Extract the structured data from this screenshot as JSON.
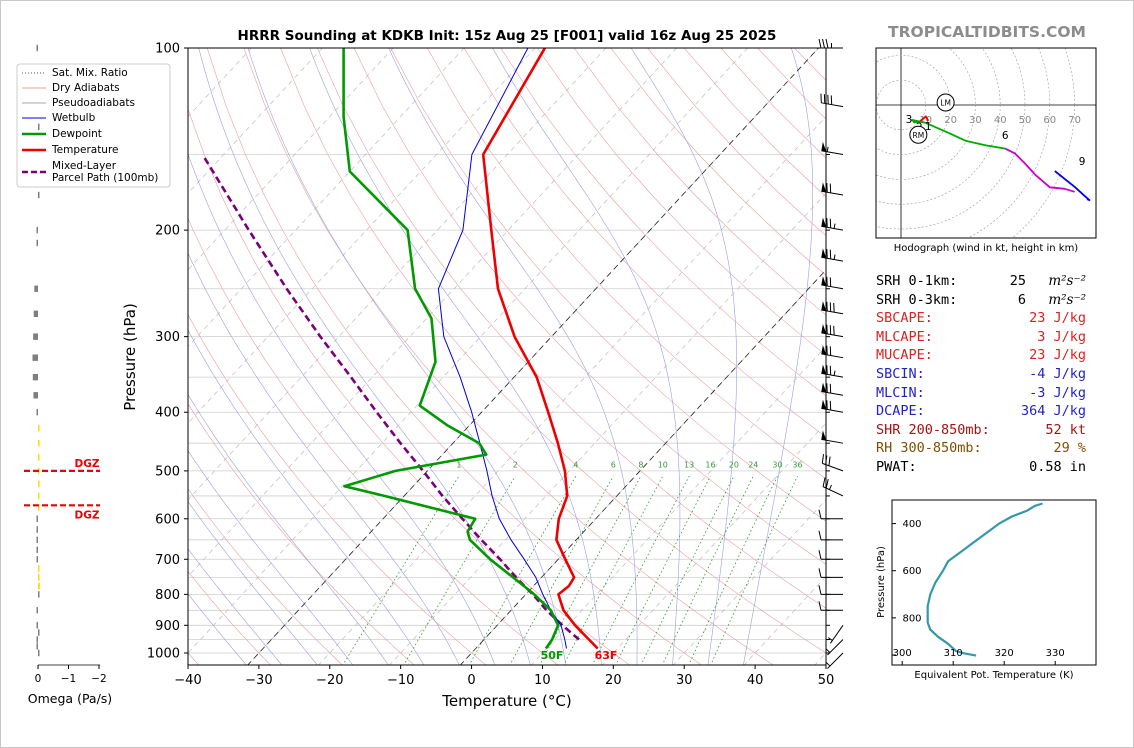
{
  "title": "HRRR Sounding at KDKB Init: 15z Aug 25 [F001] valid 16z Aug 25 2025",
  "brand": "TROPICALTIDBITS.COM",
  "colors": {
    "temperature": "#ee0000",
    "dewpoint": "#009900",
    "parcel": "#7a007a",
    "wetbulb": "#0000dd",
    "dry_adiabat": "#e8a0a0",
    "moist_adiabat": "#9aa0e0",
    "mixing_ratio": "#2a9a2a",
    "isotherm": "#000000",
    "theta_e": "#3399aa",
    "cape_text": "#dd2222",
    "cin_text": "#2222cc",
    "shr_text": "#aa1111",
    "rh_text": "#805000",
    "dgz": "#ee0000"
  },
  "chart_data": [
    {
      "type": "line",
      "name": "skew-t",
      "xlabel": "Temperature (°C)",
      "ylabel": "Pressure (hPa)",
      "xlim": [
        -40,
        50
      ],
      "ylim": [
        1050,
        100
      ],
      "x_ticks": [
        "−40",
        "−30",
        "−20",
        "−10",
        "0",
        "10",
        "20",
        "30",
        "40",
        "50"
      ],
      "y_ticks": [
        "100",
        "200",
        "300",
        "400",
        "500",
        "600",
        "700",
        "800",
        "900",
        "1000"
      ],
      "y_scale": "log",
      "grid": true,
      "legend": [
        "Sat. Mix. Ratio",
        "Dry Adiabats",
        "Pseudoadiabats",
        "Wetbulb",
        "Dewpoint",
        "Temperature",
        "Mixed-Layer\nParcel Path (100mb)"
      ],
      "legend_position": "upper-left",
      "surface_labels": {
        "dewpoint": "50F",
        "temperature": "63F"
      },
      "mixing_ratio_labels": [
        "1",
        "2",
        "4",
        "6",
        "8",
        "10",
        "13",
        "16",
        "20",
        "24",
        "30",
        "36"
      ],
      "temperature": {
        "p": [
          983,
          950,
          900,
          850,
          800,
          775,
          750,
          700,
          650,
          600,
          550,
          500,
          450,
          400,
          350,
          300,
          250,
          200,
          150,
          100
        ],
        "t": [
          17.2,
          14.8,
          11.0,
          7.4,
          4.6,
          5.0,
          4.6,
          1.0,
          -2.8,
          -5.2,
          -7.0,
          -10.6,
          -15.2,
          -20.6,
          -26.8,
          -35.2,
          -43.8,
          -52.4,
          -63.4,
          -68.6
        ]
      },
      "dewpoint": {
        "p": [
          983,
          950,
          900,
          850,
          800,
          750,
          700,
          650,
          630,
          600,
          550,
          530,
          500,
          470,
          450,
          420,
          390,
          370,
          330,
          280,
          250,
          200,
          160,
          130,
          100
        ],
        "t": [
          9.9,
          9.6,
          8.6,
          5.6,
          1.2,
          -4.0,
          -9.6,
          -15.0,
          -16.4,
          -17.0,
          -32.8,
          -39.7,
          -34.5,
          -23.8,
          -26.3,
          -33.2,
          -39.6,
          -40.7,
          -43.1,
          -49.3,
          -55.5,
          -64.2,
          -80.0,
          -88.0,
          -97.0
        ]
      },
      "wetbulb": {
        "p": [
          983,
          950,
          900,
          850,
          800,
          750,
          700,
          650,
          600,
          550,
          500,
          450,
          400,
          350,
          300,
          250,
          200,
          150,
          100
        ],
        "t": [
          12.8,
          11.4,
          9.0,
          5.6,
          2.4,
          -0.8,
          -4.8,
          -9.2,
          -13.6,
          -17.6,
          -21.6,
          -26.2,
          -31.4,
          -37.6,
          -45.2,
          -52.2,
          -56.4,
          -65.0,
          -71.0
        ]
      },
      "parcel": {
        "p": [
          950,
          900,
          850,
          800,
          750,
          700,
          650,
          600,
          550,
          500,
          450,
          400,
          350,
          300,
          250,
          200,
          150
        ],
        "t": [
          13.4,
          9.2,
          5.0,
          1.0,
          -3.6,
          -8.2,
          -13.4,
          -18.8,
          -24.6,
          -30.6,
          -37.4,
          -44.8,
          -53.0,
          -62.6,
          -73.6,
          -86.6,
          -103.0
        ]
      },
      "wind_barbs": [
        {
          "p": 1000,
          "dir": 225,
          "spd": 5
        },
        {
          "p": 950,
          "dir": 225,
          "spd": 5
        },
        {
          "p": 900,
          "dir": 215,
          "spd": 5
        },
        {
          "p": 850,
          "dir": 270,
          "spd": 10
        },
        {
          "p": 800,
          "dir": 270,
          "spd": 10
        },
        {
          "p": 750,
          "dir": 270,
          "spd": 10
        },
        {
          "p": 700,
          "dir": 270,
          "spd": 10
        },
        {
          "p": 650,
          "dir": 270,
          "spd": 10
        },
        {
          "p": 600,
          "dir": 270,
          "spd": 10
        },
        {
          "p": 550,
          "dir": 295,
          "spd": 25
        },
        {
          "p": 500,
          "dir": 290,
          "spd": 30
        },
        {
          "p": 450,
          "dir": 280,
          "spd": 50
        },
        {
          "p": 400,
          "dir": 280,
          "spd": 70
        },
        {
          "p": 375,
          "dir": 280,
          "spd": 70
        },
        {
          "p": 350,
          "dir": 280,
          "spd": 75
        },
        {
          "p": 325,
          "dir": 280,
          "spd": 70
        },
        {
          "p": 300,
          "dir": 280,
          "spd": 80
        },
        {
          "p": 275,
          "dir": 280,
          "spd": 80
        },
        {
          "p": 250,
          "dir": 280,
          "spd": 70
        },
        {
          "p": 225,
          "dir": 280,
          "spd": 75
        },
        {
          "p": 200,
          "dir": 280,
          "spd": 75
        },
        {
          "p": 175,
          "dir": 280,
          "spd": 70
        },
        {
          "p": 150,
          "dir": 280,
          "spd": 55
        },
        {
          "p": 125,
          "dir": 280,
          "spd": 40
        },
        {
          "p": 100,
          "dir": 270,
          "spd": 35
        }
      ]
    },
    {
      "type": "bar",
      "name": "omega",
      "xlabel": "Omega (Pa/s)",
      "x_ticks": [
        "0",
        "−1",
        "−2"
      ],
      "dgz_label": "DGZ",
      "dgz_levels": [
        500,
        570
      ],
      "p": [
        100,
        135,
        175,
        200,
        210,
        250,
        275,
        300,
        325,
        350,
        375,
        400,
        425,
        450,
        475,
        500,
        525,
        550,
        575,
        600,
        625,
        650,
        675,
        700,
        725,
        750,
        775,
        800,
        850,
        900,
        925,
        950,
        975,
        1000
      ],
      "omega": [
        0.02,
        -0.02,
        -0.03,
        0.03,
        0.05,
        0.12,
        0.14,
        0.16,
        0.18,
        0.17,
        0.15,
        0.05,
        -0.03,
        -0.05,
        -0.04,
        -0.04,
        -0.03,
        -0.02,
        -0.02,
        0.02,
        0.02,
        0.03,
        0.02,
        0.01,
        -0.02,
        -0.05,
        -0.06,
        -0.03,
        0.01,
        0.01,
        0.0,
        0.01,
        0.01,
        0.0
      ]
    },
    {
      "type": "line",
      "name": "hodograph",
      "caption": "Hodograph (wind in kt, height in km)",
      "ring_labels": [
        "10",
        "20",
        "30",
        "40",
        "50",
        "60",
        "70"
      ],
      "motion_labels": {
        "left_mover": "LM",
        "right_mover": "RM"
      },
      "left_mover": [
        18,
        1
      ],
      "right_mover": [
        7,
        -12
      ],
      "height_labels": [
        {
          "km": "3",
          "u": 3.2,
          "v": -5.6
        },
        {
          "km": "2",
          "u": 7.4,
          "v": -8.6
        },
        {
          "km": "1",
          "u": 11.0,
          "v": -8.4
        },
        {
          "km": "6",
          "u": 42.0,
          "v": -12.0
        },
        {
          "km": "9",
          "u": 73.0,
          "v": -22.6
        }
      ],
      "segments": [
        {
          "color": "#ee0000",
          "u": [
            11.0,
            10.0,
            7.6
          ],
          "v": [
            -6.4,
            -4.6,
            -6.6
          ]
        },
        {
          "color": "#00aa00",
          "u": [
            7.6,
            5.4,
            4.4,
            10.0,
            20.0,
            26.0,
            34.0,
            42.0
          ],
          "v": [
            -6.6,
            -7.0,
            -6.0,
            -7.2,
            -11.6,
            -14.4,
            -16.2,
            -17.6
          ]
        },
        {
          "color": "#cc00cc",
          "u": [
            42.0,
            46.0,
            50.0,
            54.0,
            60.0,
            66.0,
            70.0
          ],
          "v": [
            -17.6,
            -19.6,
            -23.6,
            -28.0,
            -33.2,
            -33.8,
            -35.0
          ]
        },
        {
          "color": "#0000ee",
          "u": [
            62.0,
            66.0,
            70.0,
            74.0,
            76.0,
            75.0
          ],
          "v": [
            -26.6,
            -29.8,
            -33.0,
            -36.6,
            -38.4,
            -38.0
          ]
        }
      ]
    },
    {
      "type": "line",
      "name": "theta-e",
      "xlabel": "Equivalent Pot. Temperature (K)",
      "ylabel": "Pressure (hPa)",
      "xlim": [
        298,
        338
      ],
      "ylim": [
        1000,
        300
      ],
      "x_ticks": [
        "300",
        "310",
        "320",
        "330"
      ],
      "y_ticks": [
        "400",
        "600",
        "800"
      ],
      "p": [
        960,
        950,
        940,
        930,
        910,
        880,
        850,
        820,
        800,
        750,
        700,
        650,
        600,
        560,
        520,
        480,
        440,
        400,
        370,
        345,
        325,
        315
      ],
      "theta_e": [
        314.5,
        312.0,
        310.5,
        310.0,
        309.0,
        307.0,
        305.5,
        305.0,
        305.0,
        305.0,
        305.5,
        306.5,
        308.0,
        309.0,
        311.5,
        314.0,
        316.5,
        319.0,
        321.5,
        324.5,
        326.0,
        327.5
      ]
    }
  ],
  "stats": [
    {
      "label": "SRH 0-1km:",
      "value": "25",
      "unit": "m²s⁻²",
      "color": "#000000"
    },
    {
      "label": "SRH 0-3km:",
      "value": "6",
      "unit": "m²s⁻²",
      "color": "#000000"
    },
    {
      "label": "SBCAPE:",
      "value": "23 J/kg",
      "unit": "",
      "color": "#dd2222"
    },
    {
      "label": "MLCAPE:",
      "value": "3 J/kg",
      "unit": "",
      "color": "#dd2222"
    },
    {
      "label": "MUCAPE:",
      "value": "23 J/kg",
      "unit": "",
      "color": "#dd2222"
    },
    {
      "label": "SBCIN:",
      "value": "-4 J/kg",
      "unit": "",
      "color": "#2222cc"
    },
    {
      "label": "MLCIN:",
      "value": "-3 J/kg",
      "unit": "",
      "color": "#2222cc"
    },
    {
      "label": "DCAPE:",
      "value": "364 J/kg",
      "unit": "",
      "color": "#2222cc"
    },
    {
      "label": "SHR 200-850mb:",
      "value": "52 kt",
      "unit": "",
      "color": "#aa1111"
    },
    {
      "label": "RH 300-850mb:",
      "value": "29 %",
      "unit": "",
      "color": "#805000"
    },
    {
      "label": "PWAT:",
      "value": "0.58 in",
      "unit": "",
      "color": "#000000"
    }
  ]
}
